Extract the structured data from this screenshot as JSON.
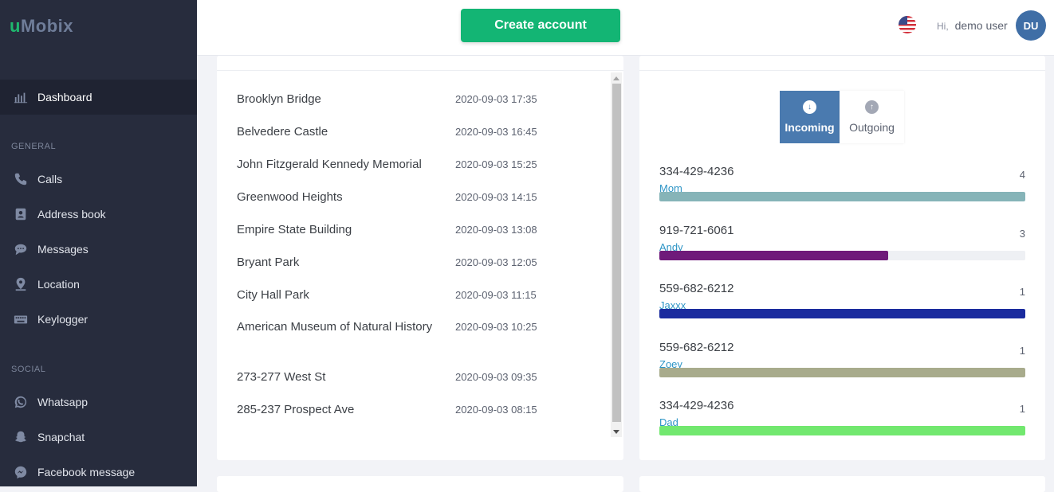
{
  "brand": {
    "logo_u": "u",
    "logo_rest": "Mobix"
  },
  "sidebar": {
    "dashboard": "Dashboard",
    "general_label": "GENERAL",
    "social_label": "SOCIAL",
    "items": [
      {
        "label": "Calls",
        "icon": "phone-icon"
      },
      {
        "label": "Address book",
        "icon": "address-book-icon"
      },
      {
        "label": "Messages",
        "icon": "chat-bubble-icon"
      },
      {
        "label": "Location",
        "icon": "location-pin-icon"
      },
      {
        "label": "Keylogger",
        "icon": "keyboard-icon"
      },
      {
        "label": "Whatsapp",
        "icon": "whatsapp-icon"
      },
      {
        "label": "Snapchat",
        "icon": "snapchat-ghost-icon"
      },
      {
        "label": "Facebook message",
        "icon": "messenger-icon"
      }
    ]
  },
  "header": {
    "create_button": "Create account",
    "hi": "Hi,",
    "username": "demo user",
    "avatar": "DU"
  },
  "locations": [
    {
      "name": "Brooklyn Bridge",
      "time": "2020-09-03 17:35"
    },
    {
      "name": "Belvedere Castle",
      "time": "2020-09-03 16:45"
    },
    {
      "name": "John Fitzgerald Kennedy Memorial",
      "time": "2020-09-03 15:25"
    },
    {
      "name": "Greenwood Heights",
      "time": "2020-09-03 14:15"
    },
    {
      "name": "Empire State Building",
      "time": "2020-09-03 13:08"
    },
    {
      "name": "Bryant Park",
      "time": "2020-09-03 12:05"
    },
    {
      "name": "City Hall Park",
      "time": "2020-09-03 11:15"
    },
    {
      "name": "American Museum of Natural History",
      "time": "2020-09-03 10:25"
    },
    {
      "name": "273-277 West St",
      "time": "2020-09-03 09:35"
    },
    {
      "name": "285-237 Prospect Ave",
      "time": "2020-09-03 08:15"
    }
  ],
  "calls": {
    "incoming_label": "Incoming",
    "outgoing_label": "Outgoing",
    "rows": [
      {
        "number": "334-429-4236",
        "name": "Mom",
        "count": "4",
        "fraction": 1.0,
        "color": "#86b4b8"
      },
      {
        "number": "919-721-6061",
        "name": "Andy",
        "count": "3",
        "fraction": 0.625,
        "color": "#6f1a7a"
      },
      {
        "number": "559-682-6212",
        "name": "Jaxxx",
        "count": "1",
        "fraction": 1.0,
        "color": "#1a2b9e"
      },
      {
        "number": "559-682-6212",
        "name": "Zoey",
        "count": "1",
        "fraction": 1.0,
        "color": "#a8ab8c"
      },
      {
        "number": "334-429-4236",
        "name": "Dad",
        "count": "1",
        "fraction": 1.0,
        "color": "#72e86f"
      }
    ]
  }
}
